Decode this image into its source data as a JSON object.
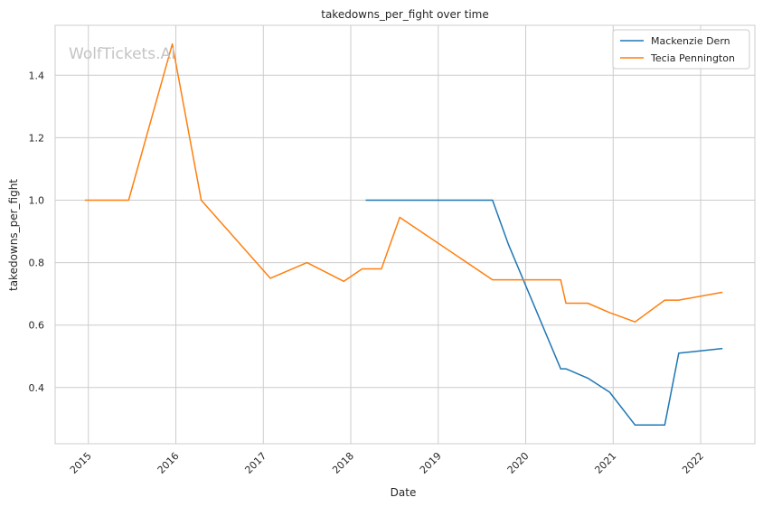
{
  "chart_data": {
    "type": "line",
    "title": "takedowns_per_fight over time",
    "xlabel": "Date",
    "ylabel": "takedowns_per_fight",
    "watermark": "WolfTickets.AI",
    "x_ticks": [
      "2015",
      "2016",
      "2017",
      "2018",
      "2019",
      "2020",
      "2021",
      "2022"
    ],
    "y_ticks": [
      "0.4",
      "0.6",
      "0.8",
      "1.0",
      "1.2",
      "1.4"
    ],
    "xlim": [
      2014.62,
      2022.62
    ],
    "ylim": [
      0.22,
      1.56
    ],
    "grid": true,
    "legend_position": "top-right",
    "colors": {
      "Mackenzie Dern": "#1f77b4",
      "Tecia Pennington": "#ff7f0e"
    },
    "series": [
      {
        "name": "Mackenzie Dern",
        "points": [
          [
            2018.17,
            1.0
          ],
          [
            2019.62,
            1.0
          ],
          [
            2019.8,
            0.86
          ],
          [
            2020.4,
            0.46
          ],
          [
            2020.46,
            0.46
          ],
          [
            2020.71,
            0.43
          ],
          [
            2020.96,
            0.385
          ],
          [
            2021.25,
            0.28
          ],
          [
            2021.59,
            0.28
          ],
          [
            2021.75,
            0.51
          ],
          [
            2022.25,
            0.525
          ]
        ]
      },
      {
        "name": "Tecia Pennington",
        "points": [
          [
            2014.96,
            1.0
          ],
          [
            2015.46,
            1.0
          ],
          [
            2015.96,
            1.5
          ],
          [
            2016.29,
            1.0
          ],
          [
            2017.08,
            0.75
          ],
          [
            2017.5,
            0.8
          ],
          [
            2017.92,
            0.74
          ],
          [
            2018.13,
            0.78
          ],
          [
            2018.35,
            0.78
          ],
          [
            2018.56,
            0.945
          ],
          [
            2019.62,
            0.745
          ],
          [
            2020.4,
            0.745
          ],
          [
            2020.46,
            0.67
          ],
          [
            2020.71,
            0.67
          ],
          [
            2020.96,
            0.64
          ],
          [
            2021.25,
            0.61
          ],
          [
            2021.59,
            0.68
          ],
          [
            2021.75,
            0.68
          ],
          [
            2022.25,
            0.705
          ]
        ]
      }
    ]
  }
}
